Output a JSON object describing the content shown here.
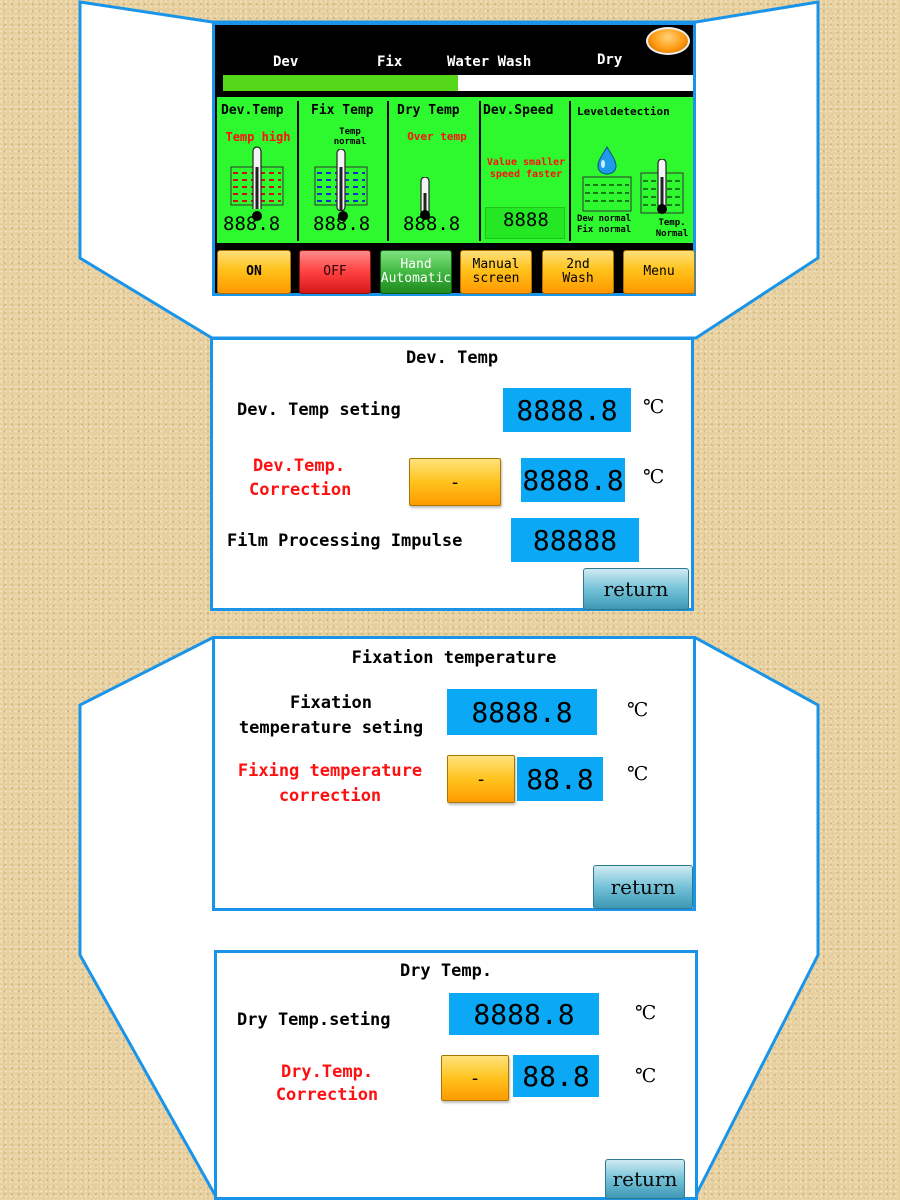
{
  "main_screen": {
    "tabs": [
      "Dev",
      "Fix",
      "Water Wash",
      "Dry"
    ],
    "progress_fraction": 0.5,
    "columns": [
      {
        "title": "Dev.Temp",
        "status": "Temp high",
        "value": "888.8"
      },
      {
        "title": "Fix Temp",
        "status": "Temp\nnormal",
        "value": "888.8"
      },
      {
        "title": "Dry Temp",
        "status": "Over temp",
        "value": "888.8"
      },
      {
        "title": "Dev.Speed",
        "status": "Value smaller\nspeed faster",
        "value": "8888"
      },
      {
        "title": "Leveldetection",
        "status_left": "Dew normal\nFix normal",
        "status_right": "Temp.\nNormal"
      }
    ],
    "buttons": [
      {
        "label": "ON"
      },
      {
        "label": "OFF"
      },
      {
        "label": "Hand\nAutomatic"
      },
      {
        "label": "Manual\nscreen"
      },
      {
        "label": "2nd\nWash"
      },
      {
        "label": "Menu"
      }
    ],
    "colors": {
      "status_bg": "#2ef82e",
      "alarm_text": "#ff1010",
      "progress": "#55d81c"
    }
  },
  "dev_temp_panel": {
    "title": "Dev.  Temp",
    "setting_label": "Dev.  Temp seting",
    "setting_value": "8888.8",
    "correction_label": "Dev.Temp.\nCorrection",
    "correction_value": "8888.8",
    "impulse_label": "Film Processing Impulse",
    "impulse_value": "88888",
    "minus_label": "-",
    "unit": "℃",
    "return_label": "return"
  },
  "fix_temp_panel": {
    "title": "Fixation temperature",
    "setting_label": "Fixation\ntemperature seting",
    "setting_value": "8888.8",
    "correction_label": "Fixing temperature\ncorrection",
    "correction_value": "88.8",
    "minus_label": "-",
    "unit": "℃",
    "return_label": "return"
  },
  "dry_temp_panel": {
    "title": "Dry  Temp.",
    "setting_label": "Dry  Temp.seting",
    "setting_value": "8888.8",
    "correction_label": "Dry.Temp.\nCorrection",
    "correction_value": "88.8",
    "minus_label": "-",
    "unit": "℃",
    "return_label": "return"
  }
}
